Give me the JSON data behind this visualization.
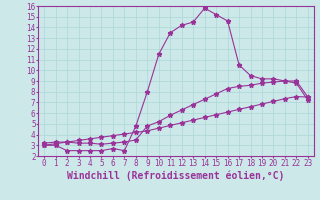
{
  "xlabel": "Windchill (Refroidissement éolien,°C)",
  "xlim": [
    -0.5,
    23.5
  ],
  "ylim": [
    2,
    16
  ],
  "xticks": [
    0,
    1,
    2,
    3,
    4,
    5,
    6,
    7,
    8,
    9,
    10,
    11,
    12,
    13,
    14,
    15,
    16,
    17,
    18,
    19,
    20,
    21,
    22,
    23
  ],
  "yticks": [
    2,
    3,
    4,
    5,
    6,
    7,
    8,
    9,
    10,
    11,
    12,
    13,
    14,
    15,
    16
  ],
  "bg_color": "#cce8e8",
  "line_color": "#993399",
  "line1_x": [
    0,
    1,
    2,
    3,
    4,
    5,
    6,
    7,
    8,
    9,
    10,
    11,
    12,
    13,
    14,
    15,
    16,
    17,
    18,
    19,
    20,
    21,
    22,
    23
  ],
  "line1_y": [
    3.0,
    3.0,
    2.5,
    2.5,
    2.5,
    2.5,
    2.7,
    2.5,
    4.8,
    8.0,
    11.5,
    13.5,
    14.2,
    14.5,
    15.8,
    15.2,
    14.6,
    10.5,
    9.5,
    9.2,
    9.2,
    9.0,
    8.8,
    7.2
  ],
  "line2_x": [
    0,
    1,
    2,
    3,
    4,
    5,
    6,
    7,
    8,
    9,
    10,
    11,
    12,
    13,
    14,
    15,
    16,
    17,
    18,
    19,
    20,
    21,
    22,
    23
  ],
  "line2_y": [
    3.2,
    3.3,
    3.3,
    3.2,
    3.2,
    3.1,
    3.2,
    3.3,
    3.5,
    4.8,
    5.2,
    5.8,
    6.3,
    6.8,
    7.3,
    7.8,
    8.3,
    8.5,
    8.6,
    8.8,
    8.9,
    9.0,
    9.0,
    7.5
  ],
  "line3_x": [
    0,
    1,
    2,
    3,
    4,
    5,
    6,
    7,
    8,
    9,
    10,
    11,
    12,
    13,
    14,
    15,
    16,
    17,
    18,
    19,
    20,
    21,
    22,
    23
  ],
  "line3_y": [
    3.0,
    3.15,
    3.3,
    3.45,
    3.6,
    3.75,
    3.9,
    4.05,
    4.2,
    4.35,
    4.6,
    4.85,
    5.1,
    5.35,
    5.6,
    5.85,
    6.1,
    6.35,
    6.6,
    6.85,
    7.1,
    7.35,
    7.55,
    7.5
  ],
  "grid_color": "#aad8d8",
  "font_family": "monospace",
  "tick_fontsize": 5.5,
  "label_fontsize": 7.0
}
